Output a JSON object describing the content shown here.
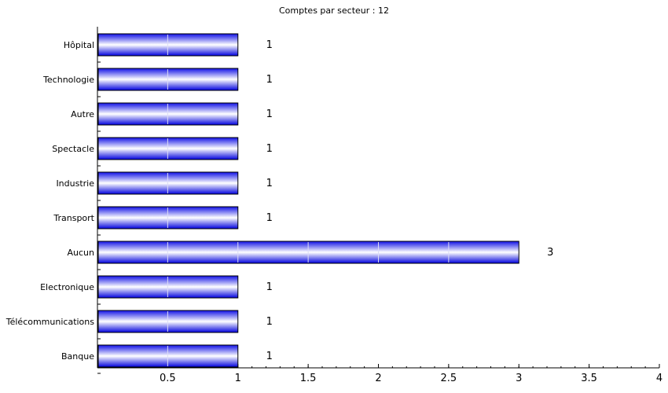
{
  "chart_data": {
    "type": "bar",
    "orientation": "horizontal",
    "title": "Comptes par secteur : 12",
    "xlabel": "",
    "ylabel": "",
    "categories": [
      "Hôpital",
      "Technologie",
      "Autre",
      "Spectacle",
      "Industrie",
      "Transport",
      "Aucun",
      "Electronique",
      "Télécommunications",
      "Banque"
    ],
    "values": [
      1,
      1,
      1,
      1,
      1,
      1,
      3,
      1,
      1,
      1
    ],
    "xlim": [
      0,
      4
    ],
    "xticks": [
      0.5,
      1,
      1.5,
      2,
      2.5,
      3,
      3.5,
      4
    ],
    "xtick_labels": [
      "0.5",
      "1",
      "1.5",
      "2",
      "2.5",
      "3",
      "3.5",
      "4"
    ],
    "value_labels": [
      "1",
      "1",
      "1",
      "1",
      "1",
      "1",
      "3",
      "1",
      "1",
      "1"
    ],
    "grid": false,
    "legend": "none",
    "colors": {
      "bar_dark": "#0000e0",
      "bar_light": "#ffffff",
      "bar_edge": "#000000",
      "segment_divider": "#dcdcf5"
    }
  }
}
